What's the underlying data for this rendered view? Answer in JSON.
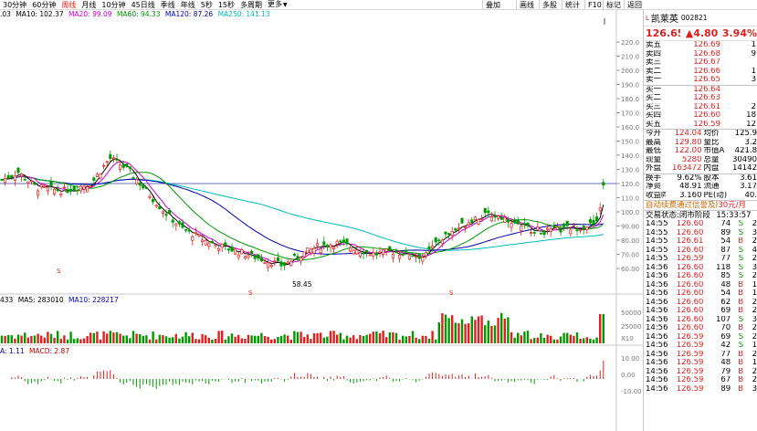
{
  "toolbar": {
    "periods": [
      "30分钟",
      "60分钟",
      "周线",
      "月线",
      "10分钟",
      "45日线",
      "季线",
      "年线",
      "5秒",
      "15秒",
      "多周期",
      "更多"
    ],
    "active_period": "周线",
    "buttons": [
      "叠加",
      "画线",
      "多股",
      "统计",
      "F10",
      "标记",
      "返回"
    ]
  },
  "main_legend": {
    "prefix": ".03",
    "items": [
      {
        "text": "MA10: 102.37",
        "color": "#000000"
      },
      {
        "text": "MA20: 99.09",
        "color": "#cc00cc"
      },
      {
        "text": "MA60: 94.33",
        "color": "#009900"
      },
      {
        "text": "MA120: 87.26",
        "color": "#0000aa"
      },
      {
        "text": "MA250: 141.13",
        "color": "#00bbbb"
      }
    ]
  },
  "vol_legend": {
    "items": [
      {
        "text": "433",
        "color": "#000000"
      },
      {
        "text": "MA5: 283010",
        "color": "#000000"
      },
      {
        "text": "MA10: 228217",
        "color": "#0000aa"
      }
    ]
  },
  "macd_legend": {
    "items": [
      {
        "text": "A: 1.11",
        "color": "#0000aa"
      },
      {
        "text": "MACD: 2.87",
        "color": "#cc0000"
      }
    ]
  },
  "price_axis": [
    "220.0",
    "210.0",
    "200.0",
    "190.0",
    "180.0",
    "170.0",
    "160.0",
    "150.0",
    "140.0",
    "130.0",
    "120.0",
    "110.0",
    "100.0",
    "90.00",
    "80.00",
    "70.00",
    "60.00"
  ],
  "vol_axis": [
    "50000",
    "25000",
    "X10"
  ],
  "macd_axis": [
    "10.00",
    "0.00",
    "-10.00"
  ],
  "low_label": "58.45",
  "quote": {
    "name": "凯莱英",
    "code": "002821",
    "price": "126.65",
    "change": "▲4.80",
    "pct": "3.94%",
    "asks": [
      {
        "label": "卖五",
        "price": "126.69",
        "vol": "1"
      },
      {
        "label": "卖四",
        "price": "126.68",
        "vol": "9"
      },
      {
        "label": "卖三",
        "price": "126.67",
        "vol": ""
      },
      {
        "label": "卖二",
        "price": "126.66",
        "vol": "1"
      },
      {
        "label": "卖一",
        "price": "126.65",
        "vol": "3"
      }
    ],
    "bids": [
      {
        "label": "买一",
        "price": "126.64",
        "vol": ""
      },
      {
        "label": "买二",
        "price": "126.63",
        "vol": ""
      },
      {
        "label": "买三",
        "price": "126.61",
        "vol": "2"
      },
      {
        "label": "买四",
        "price": "126.60",
        "vol": "18"
      },
      {
        "label": "买五",
        "price": "126.59",
        "vol": "12"
      }
    ],
    "stats": [
      [
        "今开",
        "124.04",
        "均价",
        "125.9"
      ],
      [
        "最高",
        "129.80",
        "量比",
        "3.2"
      ],
      [
        "最低",
        "122.00",
        "市值A",
        "421.8"
      ],
      [
        "现量",
        "5280",
        "总量",
        "30490"
      ],
      [
        "外盘",
        "163472",
        "内盘",
        "14142"
      ]
    ],
    "stats2": [
      [
        "换手",
        "9.62%",
        "股本",
        "3.61"
      ],
      [
        "净资",
        "48.91",
        "流通",
        "3.17"
      ],
      [
        "收益㈣",
        "3.160",
        "PE(动)",
        "40."
      ]
    ],
    "notice": "自动续费通过信誉及朋",
    "notice_price": "30元/月",
    "trade_status_label": "交易状态:闭市阶段",
    "trade_time": "15:33:57",
    "ticks": [
      [
        "14:55",
        "126.60",
        "74",
        "S",
        "2"
      ],
      [
        "14:55",
        "126.60",
        "89",
        "S",
        "3"
      ],
      [
        "14:55",
        "126.61",
        "54",
        "B",
        "2"
      ],
      [
        "14:55",
        "126.60",
        "87",
        "S",
        "4"
      ],
      [
        "14:55",
        "126.59",
        "77",
        "S",
        "2"
      ],
      [
        "14:56",
        "126.60",
        "118",
        "S",
        "3"
      ],
      [
        "14:56",
        "126.60",
        "85",
        "S",
        "2"
      ],
      [
        "14:56",
        "126.60",
        "48",
        "B",
        "1"
      ],
      [
        "14:56",
        "126.60",
        "54",
        "B",
        "1"
      ],
      [
        "14:56",
        "126.60",
        "62",
        "B",
        "2"
      ],
      [
        "14:56",
        "126.60",
        "69",
        "B",
        "2"
      ],
      [
        "14:56",
        "126.60",
        "107",
        "S",
        "3"
      ],
      [
        "14:56",
        "126.60",
        "70",
        "B",
        "2"
      ],
      [
        "14:56",
        "126.59",
        "69",
        "S",
        "2"
      ],
      [
        "14:56",
        "126.59",
        "42",
        "S",
        "1"
      ],
      [
        "14:56",
        "126.59",
        "77",
        "B",
        "2"
      ],
      [
        "14:56",
        "126.59",
        "48",
        "B",
        "1"
      ],
      [
        "14:56",
        "126.59",
        "79",
        "B",
        "2"
      ],
      [
        "14:56",
        "126.59",
        "67",
        "B",
        "2"
      ],
      [
        "14:56",
        "126.59",
        "89",
        "B",
        "3"
      ]
    ]
  }
}
